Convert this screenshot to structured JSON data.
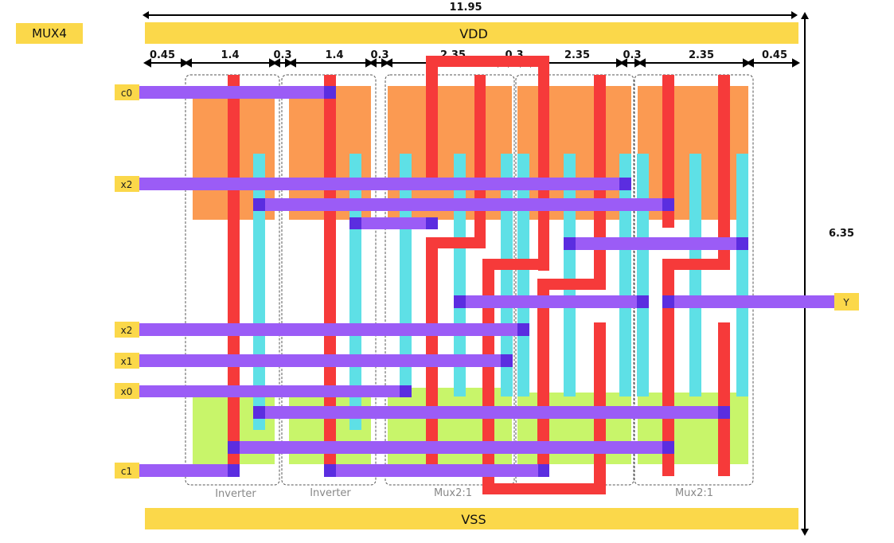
{
  "title": "MUX4",
  "rails": {
    "top": "VDD",
    "bottom": "VSS"
  },
  "dimensions": {
    "total_width": "11.95",
    "total_height": "6.35",
    "segments": [
      "0.45",
      "1.4",
      "0.3",
      "1.4",
      "0.3",
      "2.35",
      "0.3",
      "2.35",
      "0.3",
      "2.35",
      "0.45"
    ]
  },
  "cells": [
    "Inverter",
    "Inverter",
    "Mux2:1",
    "Mux2:1",
    "Mux2:1"
  ],
  "pins": {
    "c0": "c0",
    "x2_top": "x2",
    "x2_mid": "x2",
    "x1": "x1",
    "x0": "x0",
    "c1": "c1",
    "y": "Y"
  },
  "colors": {
    "rail": "#fbd84a",
    "pmos": "#fb9a52",
    "nmos": "#c8f56a",
    "poly": "#f63a3a",
    "diffusion": "#5ee0e6",
    "metal": "#9b5cf6",
    "contact": "#5b2de0"
  }
}
